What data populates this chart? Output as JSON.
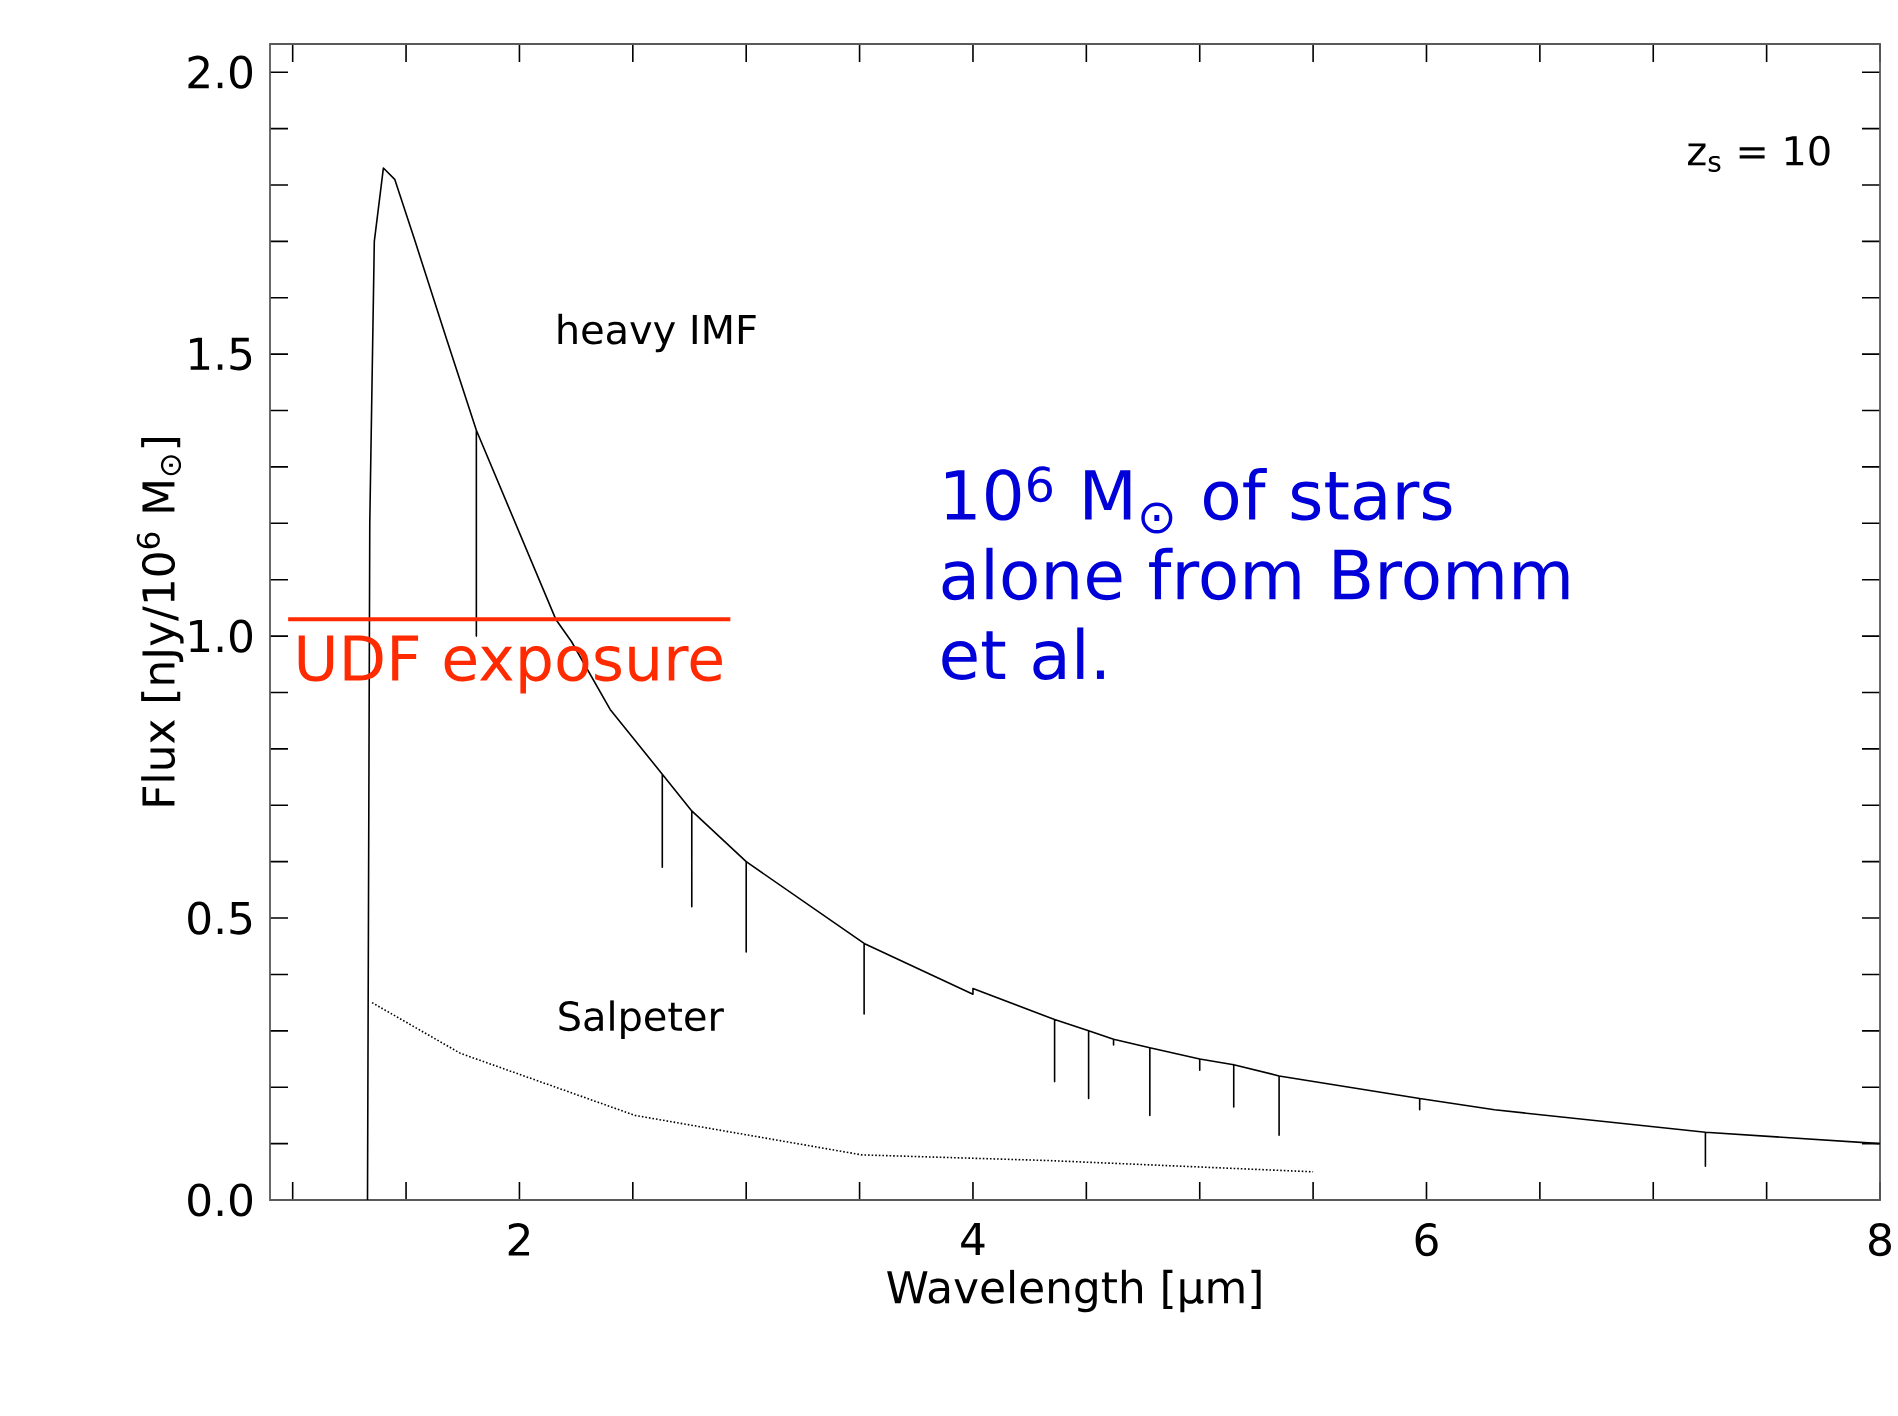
{
  "chart_data": {
    "type": "line",
    "xlabel": "Wavelength [μm]",
    "ylabel": "Flux [nJy/10$^{6}$ M$_{⊙}$]",
    "xlim": [
      0.9,
      8
    ],
    "ylim": [
      0,
      2.05
    ],
    "xticks": [
      {
        "value": 1,
        "label": null
      },
      {
        "value": 1.5,
        "label": null
      },
      2,
      {
        "value": 2.5,
        "label": null
      },
      {
        "value": 3,
        "label": null
      },
      {
        "value": 3.5,
        "label": null
      },
      4,
      {
        "value": 4.5,
        "label": null
      },
      {
        "value": 5,
        "label": null
      },
      {
        "value": 5.5,
        "label": null
      },
      6,
      {
        "value": 6.5,
        "label": null
      },
      {
        "value": 7,
        "label": null
      },
      {
        "value": 7.5,
        "label": null
      },
      8
    ],
    "yticks": [
      {
        "value": 0,
        "label": "0.0"
      },
      {
        "value": 0.1,
        "label": null
      },
      {
        "value": 0.2,
        "label": null
      },
      {
        "value": 0.3,
        "label": null
      },
      {
        "value": 0.4,
        "label": null
      },
      {
        "value": 0.5,
        "label": "0.5"
      },
      {
        "value": 0.6,
        "label": null
      },
      {
        "value": 0.7,
        "label": null
      },
      {
        "value": 0.8,
        "label": null
      },
      {
        "value": 0.9,
        "label": null
      },
      {
        "value": 1,
        "label": "1.0"
      },
      {
        "value": 1.1,
        "label": null
      },
      {
        "value": 1.2,
        "label": null
      },
      {
        "value": 1.3,
        "label": null
      },
      {
        "value": 1.4,
        "label": null
      },
      {
        "value": 1.5,
        "label": "1.5"
      },
      {
        "value": 1.6,
        "label": null
      },
      {
        "value": 1.7,
        "label": null
      },
      {
        "value": 1.8,
        "label": null
      },
      {
        "value": 1.9,
        "label": null
      },
      {
        "value": 2,
        "label": "2.0"
      }
    ],
    "grid": false,
    "legend": false,
    "marker": "none",
    "series": [
      {
        "name": "heavy IMF",
        "color": "#000000",
        "line_style": "solid",
        "x": [
          1.33,
          1.34,
          1.36,
          1.4,
          1.45,
          1.54,
          1.68,
          1.81,
          1.81,
          1.81,
          2.16,
          2.23,
          2.4,
          2.63,
          2.63,
          2.63,
          2.76,
          2.76,
          2.76,
          3.0,
          3.0,
          3.0,
          3.52,
          3.52,
          3.52,
          4.0,
          4.0,
          4.36,
          4.36,
          4.36,
          4.51,
          4.51,
          4.51,
          4.62,
          4.62,
          4.62,
          4.78,
          4.78,
          4.78,
          5.0,
          5.0,
          5.0,
          5.15,
          5.15,
          5.15,
          5.35,
          5.35,
          5.35,
          5.97,
          5.97,
          5.97,
          6.3,
          7.23,
          7.23,
          7.23,
          8.0
        ],
        "values": [
          0,
          1.2,
          1.7,
          1.83,
          1.81,
          1.7,
          1.525,
          1.365,
          1.0,
          1.365,
          1.03,
          0.99,
          0.87,
          0.755,
          0.59,
          0.755,
          0.69,
          0.52,
          0.69,
          0.6,
          0.44,
          0.6,
          0.455,
          0.33,
          0.455,
          0.365,
          0.375,
          0.32,
          0.21,
          0.32,
          0.3,
          0.18,
          0.3,
          0.285,
          0.275,
          0.285,
          0.27,
          0.15,
          0.27,
          0.25,
          0.23,
          0.25,
          0.24,
          0.165,
          0.24,
          0.22,
          0.115,
          0.22,
          0.18,
          0.16,
          0.18,
          0.16,
          0.12,
          0.06,
          0.12,
          0.1
        ]
      },
      {
        "name": "Salpeter",
        "color": "#000000",
        "line_style": "dotted",
        "x": [
          1.35,
          1.74,
          2.51,
          3.51,
          4.33,
          5.5
        ],
        "values": [
          0.35,
          0.26,
          0.15,
          0.08,
          0.07,
          0.05
        ]
      },
      {
        "color": "#ff2a00",
        "line_style": "solid",
        "x": [
          0.98,
          2.93
        ],
        "values": [
          1.03,
          1.03
        ]
      }
    ],
    "annotations": [
      "z$_{s}$ = 10",
      "10$^{6}$ M$_{⊙}$ of  stars alone from Bromm et al.",
      {
        "text": "UDF exposure",
        "x": 1.955,
        "y": 1.03
      }
    ]
  }
}
